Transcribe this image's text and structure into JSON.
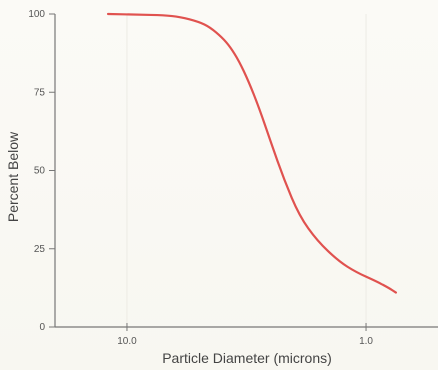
{
  "chart_data": {
    "type": "line",
    "title": "",
    "xlabel": "Particle Diameter (microns)",
    "ylabel": "Percent Below",
    "x_scale": "log",
    "x_direction": "descending",
    "xlim": [
      20,
      0.5
    ],
    "ylim": [
      0,
      100
    ],
    "x_ticks": [
      10,
      1
    ],
    "x_tick_labels": [
      "10.0",
      "1.0"
    ],
    "y_ticks": [
      0,
      25,
      50,
      75,
      100
    ],
    "y_tick_labels": [
      "0",
      "25",
      "50",
      "75",
      "100"
    ],
    "grid": false,
    "legend": "none",
    "series": [
      {
        "color": "#e0524f",
        "x": [
          12.0,
          9.0,
          7.0,
          6.0,
          5.0,
          4.5,
          4.0,
          3.7,
          3.4,
          3.1,
          2.8,
          2.5,
          2.2,
          1.9,
          1.6,
          1.3,
          1.1,
          0.9,
          0.8,
          0.75
        ],
        "y": [
          100,
          99.8,
          99.6,
          99.1,
          97.5,
          95.8,
          92.5,
          89.5,
          85.0,
          78.5,
          70.0,
          59.0,
          47.0,
          35.5,
          27.5,
          21.0,
          17.5,
          14.5,
          12.4,
          11.0
        ]
      }
    ]
  }
}
